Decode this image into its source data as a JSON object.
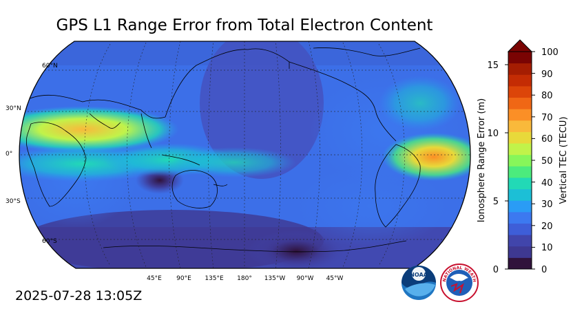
{
  "title": "GPS L1 Range Error from Total Electron Content",
  "timestamp": "2025-07-28 13:05Z",
  "map": {
    "lat_labels": [
      "60°N",
      "30°N",
      "0°",
      "30°S",
      "60°S"
    ],
    "lon_labels": [
      "45°E",
      "90°E",
      "135°E",
      "180°",
      "135°W",
      "90°W",
      "45°W"
    ]
  },
  "colorbar": {
    "right_axis_title": "Vertical TEC (TECU)",
    "right_ticks": [
      "0",
      "10",
      "20",
      "30",
      "40",
      "50",
      "60",
      "70",
      "80",
      "90",
      "100"
    ],
    "left_axis_title": "Ionosphere Range Error (m)",
    "left_ticks": [
      "0",
      "5",
      "10",
      "15"
    ],
    "colors": [
      "#30123b",
      "#3e3891",
      "#4145ab",
      "#3e5ed8",
      "#3c79f0",
      "#2a9cf5",
      "#1cbfd6",
      "#22d9b6",
      "#4ceb7d",
      "#87f65a",
      "#c1f34a",
      "#e8d93a",
      "#f9b93b",
      "#fb8f26",
      "#f06715",
      "#dc4509",
      "#c42c04",
      "#a51d02",
      "#7a0403"
    ]
  },
  "logos": {
    "noaa_text": "NOAA",
    "nws_ring_text": "NATIONAL WEATHER SERVICE"
  }
}
